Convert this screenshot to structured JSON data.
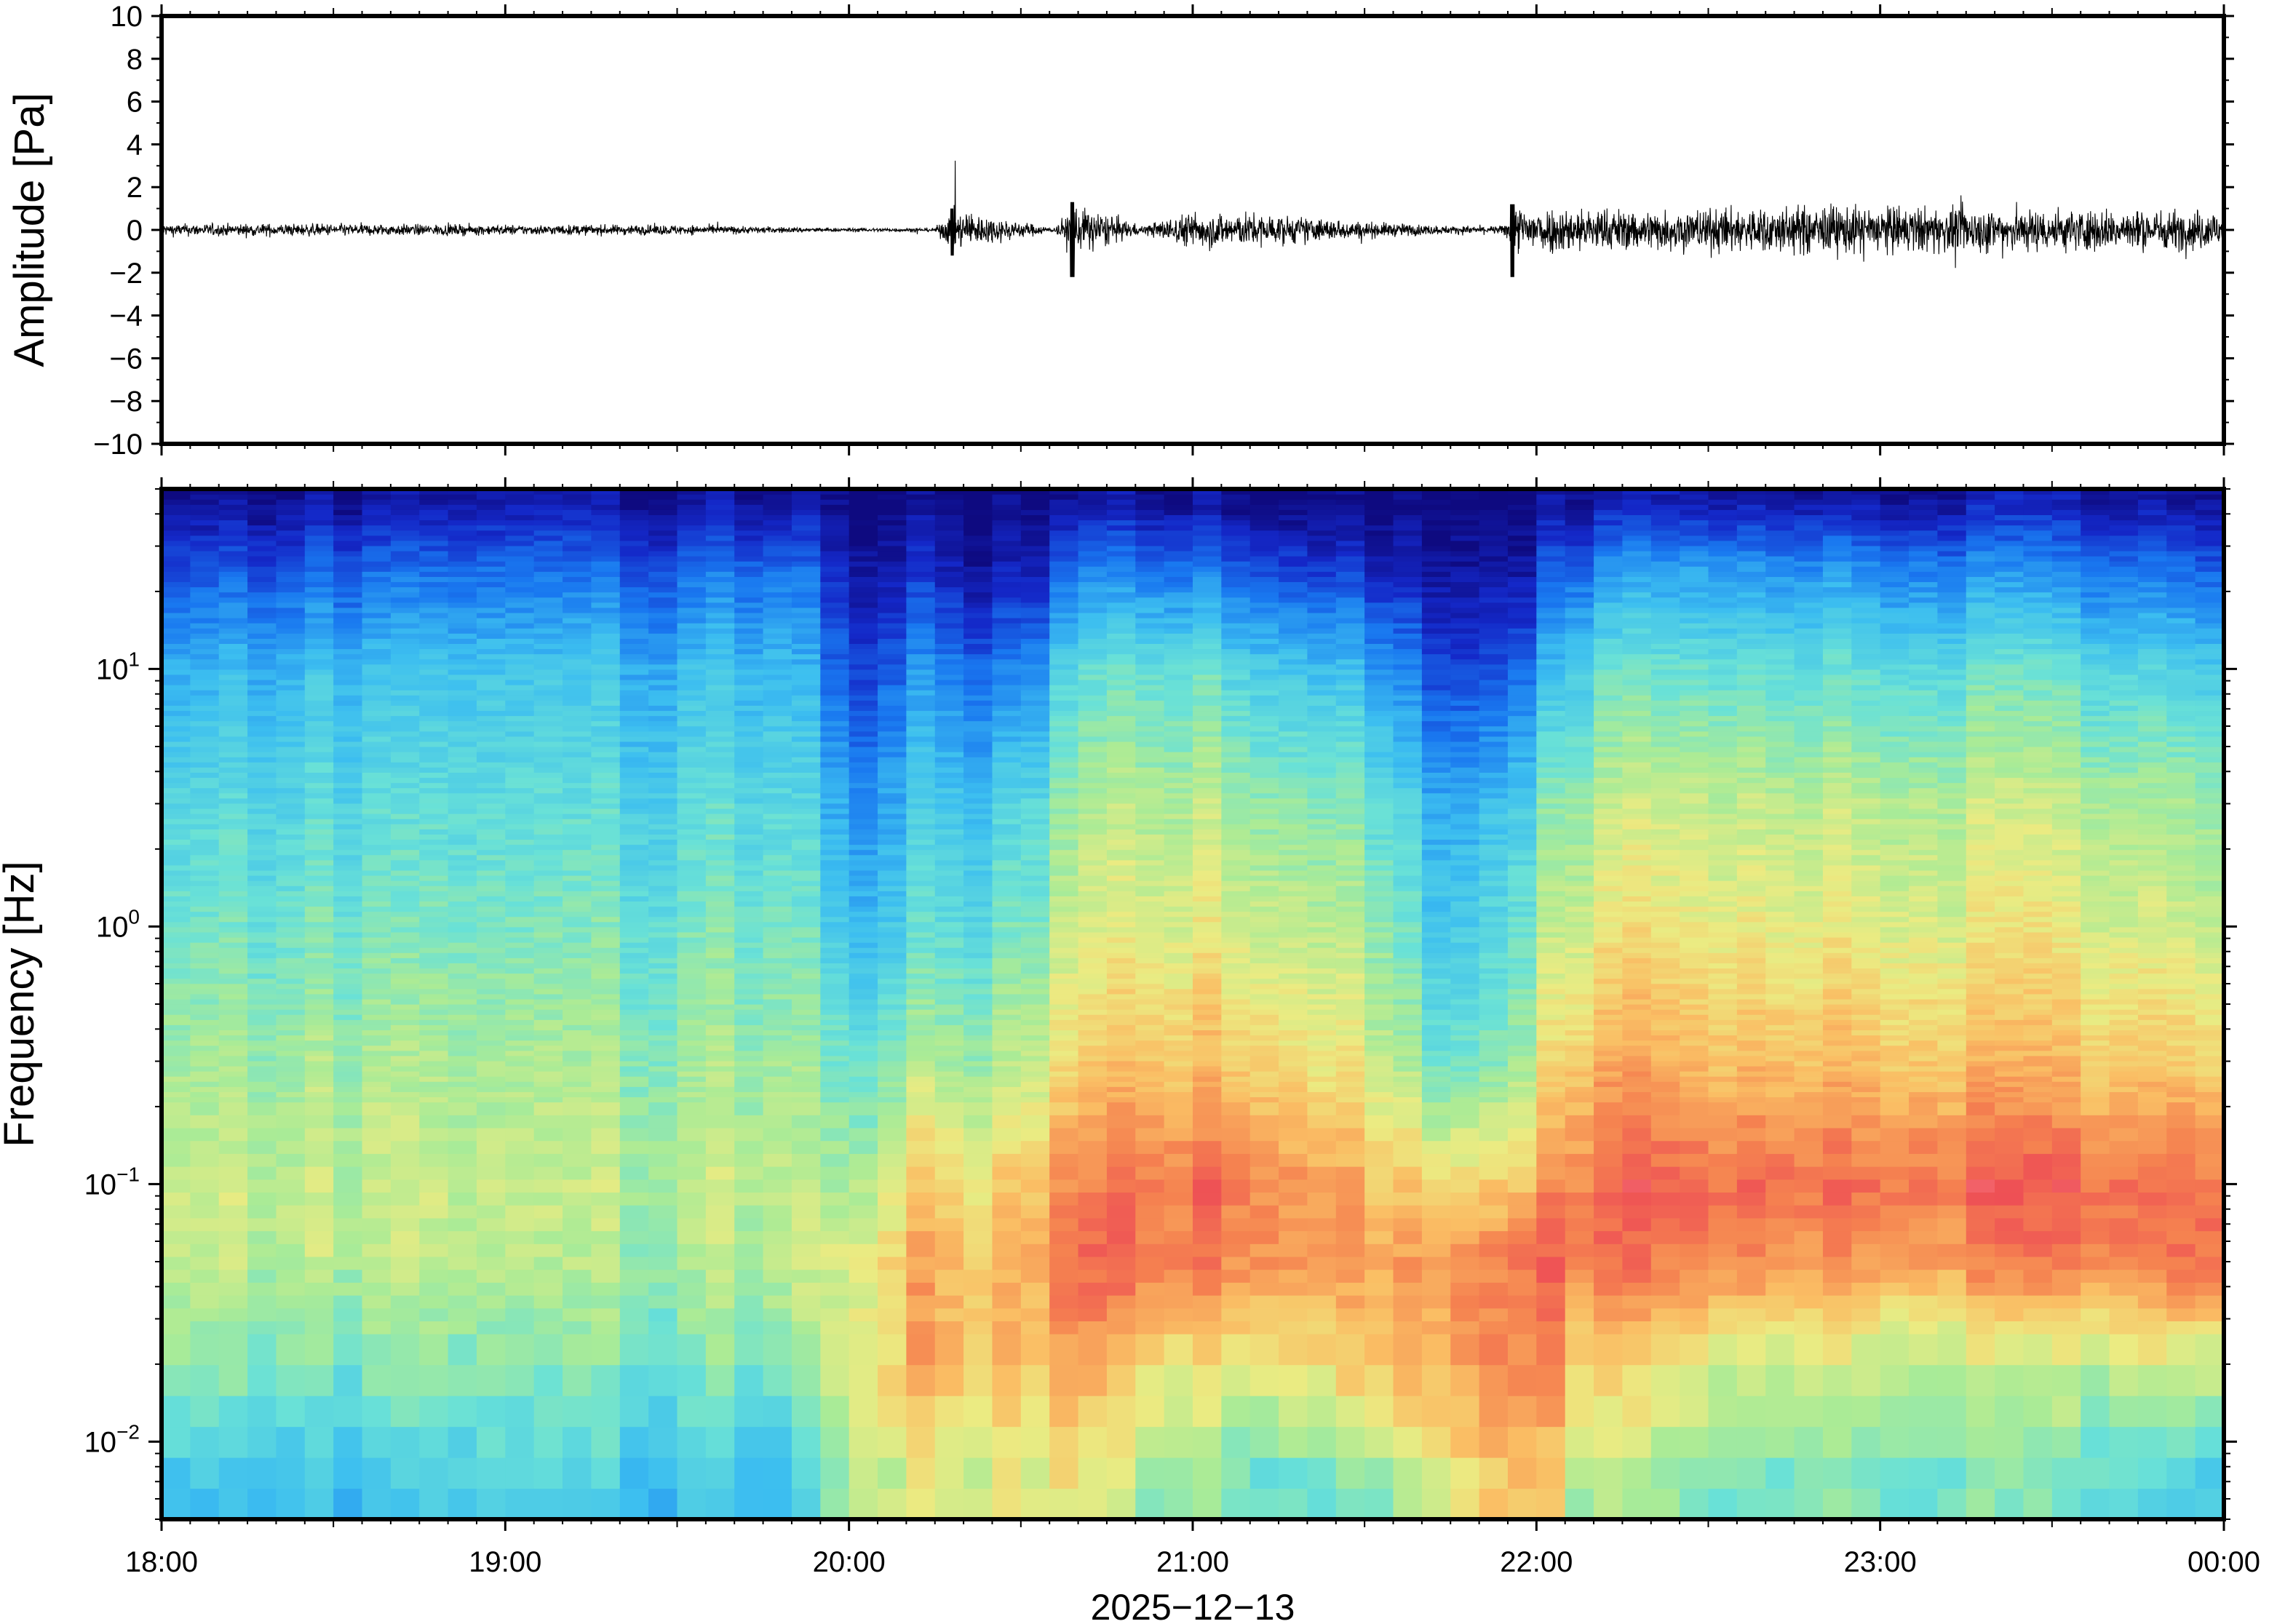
{
  "chart_data": [
    {
      "type": "line",
      "panel": "waveform",
      "ylabel": "Amplitude [Pa]",
      "ylim": [
        -10,
        10
      ],
      "yticks": [
        10,
        8,
        6,
        4,
        2,
        0,
        -2,
        -4,
        -6,
        -8,
        -10
      ],
      "ytick_labels": [
        "10",
        "8",
        "6",
        "4",
        "2",
        "0",
        "−2",
        "−4",
        "−6",
        "−8",
        "−10"
      ],
      "x_range": [
        "2025-12-13 18:00",
        "2025-12-14 00:00"
      ],
      "series": [
        {
          "values": "noisy trace centered at 0",
          "envelope": {
            "x_hours": [
              18.0,
              18.5,
              19.0,
              19.5,
              19.95,
              20.25,
              20.3,
              20.6,
              20.65,
              20.75,
              20.85,
              21.0,
              21.2,
              21.5,
              21.75,
              21.9,
              21.95,
              22.3,
              22.8,
              23.3,
              23.8,
              24.0
            ],
            "amp_pa": [
              0.3,
              0.3,
              0.25,
              0.25,
              0.1,
              0.1,
              1.0,
              0.1,
              1.3,
              0.8,
              0.2,
              0.9,
              0.8,
              0.4,
              0.2,
              0.2,
              1.2,
              1.0,
              1.2,
              1.1,
              1.0,
              1.0
            ]
          }
        }
      ]
    },
    {
      "type": "heatmap",
      "panel": "spectrogram",
      "ylabel": "Frequency [Hz]",
      "xlabel": "2025−12−13",
      "yscale": "log",
      "ylim": [
        0.005,
        50
      ],
      "yticks": [
        0.01,
        0.1,
        1,
        10
      ],
      "ytick_labels": [
        {
          "base": "10",
          "exp": "−2"
        },
        {
          "base": "10",
          "exp": "−1"
        },
        {
          "base": "10",
          "exp": "0"
        },
        {
          "base": "10",
          "exp": "1"
        }
      ],
      "xticks": [
        "18:00",
        "19:00",
        "20:00",
        "21:00",
        "22:00",
        "23:00",
        "00:00"
      ],
      "colormap": "rainbow (blue low power → red high power)",
      "power_levels": {
        "x_hours": [
          18.0,
          18.5,
          19.0,
          19.5,
          19.85,
          20.0,
          20.2,
          20.5,
          20.65,
          20.9,
          21.2,
          21.5,
          21.75,
          21.95,
          22.15,
          22.5,
          23.0,
          23.5,
          24.0
        ],
        "note": "relative power 0..1, rows = frequency bands 0.007, 0.02, 0.05, 0.1, 0.3, 1, 3, 10, 25, 45 Hz",
        "rows": [
          [
            0.38,
            0.33,
            0.4,
            0.36,
            0.33,
            0.6,
            0.62,
            0.64,
            0.66,
            0.52,
            0.48,
            0.52,
            0.66,
            0.78,
            0.56,
            0.5,
            0.5,
            0.48,
            0.38
          ],
          [
            0.52,
            0.5,
            0.48,
            0.48,
            0.5,
            0.62,
            0.78,
            0.74,
            0.8,
            0.7,
            0.68,
            0.74,
            0.82,
            0.88,
            0.72,
            0.64,
            0.6,
            0.58,
            0.62
          ],
          [
            0.6,
            0.58,
            0.56,
            0.56,
            0.58,
            0.64,
            0.78,
            0.76,
            0.9,
            0.86,
            0.86,
            0.8,
            0.82,
            0.9,
            0.88,
            0.84,
            0.82,
            0.84,
            0.9
          ],
          [
            0.62,
            0.6,
            0.58,
            0.58,
            0.58,
            0.56,
            0.7,
            0.72,
            0.84,
            0.88,
            0.88,
            0.78,
            0.7,
            0.76,
            0.9,
            0.9,
            0.9,
            0.9,
            0.88
          ],
          [
            0.56,
            0.55,
            0.54,
            0.54,
            0.54,
            0.46,
            0.55,
            0.58,
            0.7,
            0.74,
            0.74,
            0.66,
            0.46,
            0.56,
            0.78,
            0.76,
            0.76,
            0.74,
            0.72
          ],
          [
            0.48,
            0.48,
            0.47,
            0.48,
            0.48,
            0.34,
            0.42,
            0.48,
            0.6,
            0.64,
            0.64,
            0.58,
            0.36,
            0.48,
            0.66,
            0.66,
            0.66,
            0.64,
            0.6
          ],
          [
            0.42,
            0.42,
            0.42,
            0.42,
            0.42,
            0.26,
            0.36,
            0.4,
            0.54,
            0.58,
            0.56,
            0.5,
            0.3,
            0.4,
            0.58,
            0.6,
            0.6,
            0.58,
            0.54
          ],
          [
            0.32,
            0.34,
            0.34,
            0.34,
            0.34,
            0.14,
            0.24,
            0.22,
            0.42,
            0.46,
            0.42,
            0.34,
            0.14,
            0.2,
            0.44,
            0.46,
            0.46,
            0.44,
            0.38
          ],
          [
            0.16,
            0.18,
            0.18,
            0.18,
            0.2,
            0.05,
            0.08,
            0.05,
            0.2,
            0.22,
            0.18,
            0.12,
            0.04,
            0.06,
            0.24,
            0.28,
            0.26,
            0.22,
            0.18
          ],
          [
            0.02,
            0.03,
            0.03,
            0.03,
            0.03,
            0.0,
            0.0,
            0.0,
            0.02,
            0.03,
            0.02,
            0.01,
            0.0,
            0.0,
            0.05,
            0.06,
            0.06,
            0.05,
            0.03
          ]
        ]
      }
    }
  ]
}
